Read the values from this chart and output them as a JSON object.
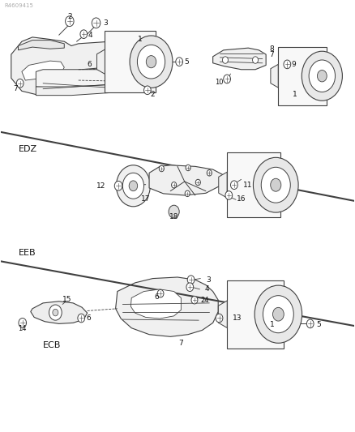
{
  "bg_color": "#ffffff",
  "line_color": "#404040",
  "text_color": "#111111",
  "figsize": [
    4.38,
    5.33
  ],
  "dpi": 100,
  "sections": [
    "EDZ",
    "EEB",
    "ECB"
  ],
  "diag_line1": [
    [
      0.0,
      0.695
    ],
    [
      1.0,
      0.535
    ]
  ],
  "diag_line2": [
    [
      0.0,
      0.395
    ],
    [
      1.0,
      0.245
    ]
  ],
  "edz_label": [
    0.05,
    0.63
  ],
  "eeb_label": [
    0.05,
    0.415
  ],
  "ecb_label": [
    0.12,
    0.2
  ]
}
